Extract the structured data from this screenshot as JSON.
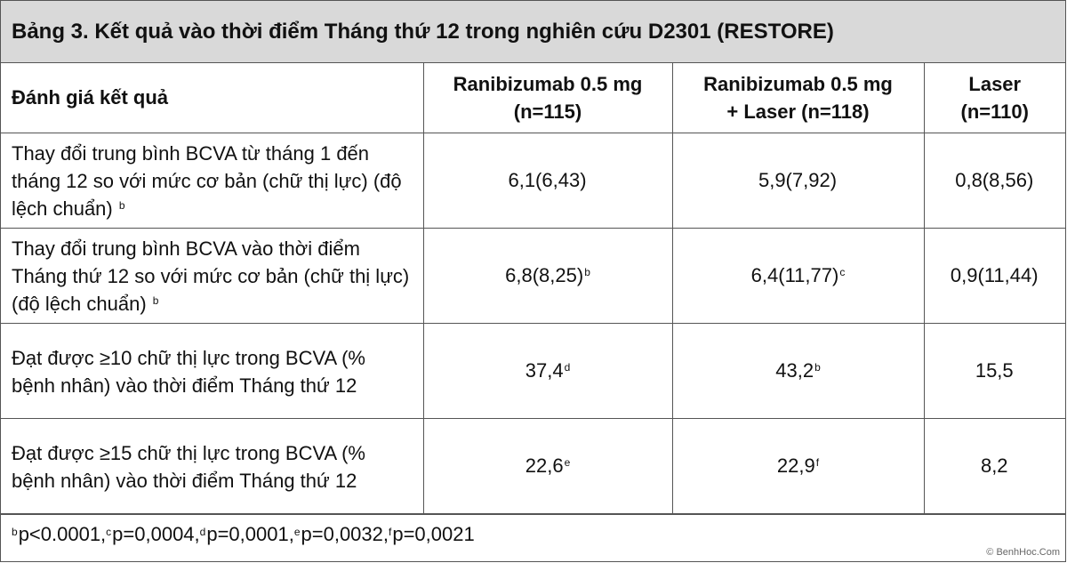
{
  "title": "Bảng 3. Kết quả vào thời điểm Tháng thứ 12 trong nghiên cứu D2301 (RESTORE)",
  "headers": {
    "col1": "Đánh giá kết quả",
    "col2_l1": "Ranibizumab 0.5 mg",
    "col2_l2": "(n=115)",
    "col3_l1": "Ranibizumab 0.5 mg",
    "col3_l2": "+ Laser (n=118)",
    "col4_l1": "Laser",
    "col4_l2": "(n=110)"
  },
  "rows": [
    {
      "label": "Thay đổi trung bình BCVA từ tháng 1 đến tháng 12 so với mức cơ bản (chữ thị lực) (độ lệch chuẩn)",
      "label_sup": "b",
      "c2": "6,1(6,43)",
      "c2_sup": "",
      "c3": "5,9(7,92)",
      "c3_sup": "",
      "c4": "0,8(8,56)",
      "c4_sup": ""
    },
    {
      "label": "Thay đổi trung bình BCVA vào thời điểm Tháng thứ 12 so với mức cơ bản (chữ thị lực) (độ lệch chuẩn)",
      "label_sup": "b",
      "c2": "6,8(8,25)",
      "c2_sup": "b",
      "c3": "6,4(11,77)",
      "c3_sup": "c",
      "c4": "0,9(11,44)",
      "c4_sup": ""
    },
    {
      "label": "Đạt được ≥10 chữ thị lực trong BCVA (% bệnh nhân) vào thời điểm Tháng thứ 12",
      "label_sup": "",
      "c2": "37,4",
      "c2_sup": "d",
      "c3": "43,2",
      "c3_sup": "b",
      "c4": "15,5",
      "c4_sup": ""
    },
    {
      "label": "Đạt được ≥15 chữ thị lực trong BCVA (% bệnh nhân) vào thời điểm Tháng thứ 12",
      "label_sup": "",
      "c2": "22,6",
      "c2_sup": "e",
      "c3": "22,9",
      "c3_sup": "f",
      "c4": "8,2",
      "c4_sup": ""
    }
  ],
  "footnote": [
    {
      "sup": "b",
      "text": "p<0.0001, "
    },
    {
      "sup": "c",
      "text": "p=0,0004, "
    },
    {
      "sup": "d",
      "text": "p=0,0001, "
    },
    {
      "sup": "e",
      "text": "p=0,0032, "
    },
    {
      "sup": "f",
      "text": "p=0,0021"
    }
  ],
  "watermark": "© BenhHoc.Com"
}
